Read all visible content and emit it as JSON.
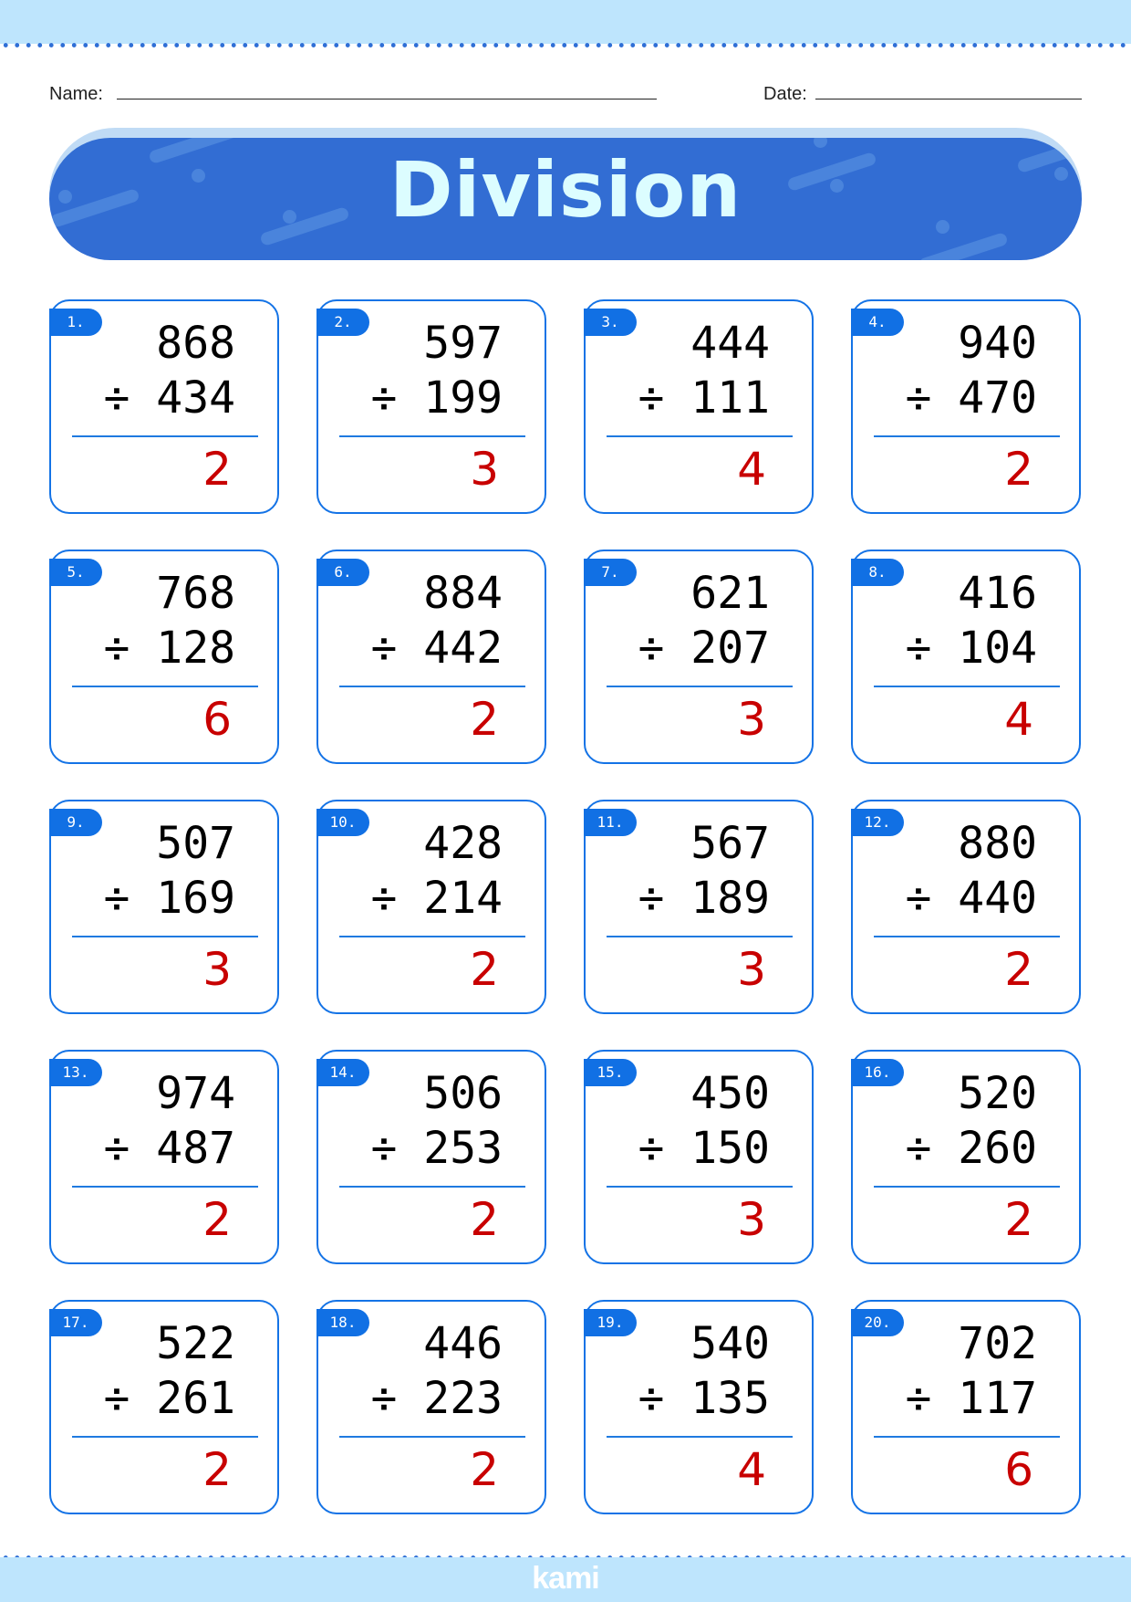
{
  "header": {
    "name_label": "Name:",
    "date_label": "Date:"
  },
  "title": "Division",
  "operator": "÷",
  "footer_logo": "kami",
  "colors": {
    "banner": "#326dd3",
    "card_border": "#1473e6",
    "answer": "#c80000",
    "band": "#bee5fd"
  },
  "problems": [
    {
      "label": "1.",
      "dividend": "868",
      "divisor": "434",
      "answer": "2"
    },
    {
      "label": "2.",
      "dividend": "597",
      "divisor": "199",
      "answer": "3"
    },
    {
      "label": "3.",
      "dividend": "444",
      "divisor": "111",
      "answer": "4"
    },
    {
      "label": "4.",
      "dividend": "940",
      "divisor": "470",
      "answer": "2"
    },
    {
      "label": "5.",
      "dividend": "768",
      "divisor": "128",
      "answer": "6"
    },
    {
      "label": "6.",
      "dividend": "884",
      "divisor": "442",
      "answer": "2"
    },
    {
      "label": "7.",
      "dividend": "621",
      "divisor": "207",
      "answer": "3"
    },
    {
      "label": "8.",
      "dividend": "416",
      "divisor": "104",
      "answer": "4"
    },
    {
      "label": "9.",
      "dividend": "507",
      "divisor": "169",
      "answer": "3"
    },
    {
      "label": "10.",
      "dividend": "428",
      "divisor": "214",
      "answer": "2"
    },
    {
      "label": "11.",
      "dividend": "567",
      "divisor": "189",
      "answer": "3"
    },
    {
      "label": "12.",
      "dividend": "880",
      "divisor": "440",
      "answer": "2"
    },
    {
      "label": "13.",
      "dividend": "974",
      "divisor": "487",
      "answer": "2"
    },
    {
      "label": "14.",
      "dividend": "506",
      "divisor": "253",
      "answer": "2"
    },
    {
      "label": "15.",
      "dividend": "450",
      "divisor": "150",
      "answer": "3"
    },
    {
      "label": "16.",
      "dividend": "520",
      "divisor": "260",
      "answer": "2"
    },
    {
      "label": "17.",
      "dividend": "522",
      "divisor": "261",
      "answer": "2"
    },
    {
      "label": "18.",
      "dividend": "446",
      "divisor": "223",
      "answer": "2"
    },
    {
      "label": "19.",
      "dividend": "540",
      "divisor": "135",
      "answer": "4"
    },
    {
      "label": "20.",
      "dividend": "702",
      "divisor": "117",
      "answer": "6"
    }
  ]
}
